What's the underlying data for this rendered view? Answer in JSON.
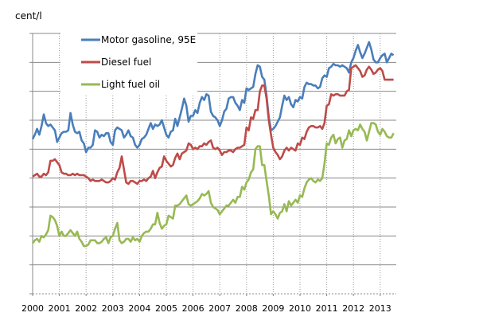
{
  "chart_data": {
    "type": "line",
    "title": "",
    "ylabel": "cent/l",
    "xlabel": "",
    "ylim": [
      0,
      180
    ],
    "yticks": [
      0,
      20,
      40,
      60,
      80,
      100,
      120,
      140,
      160,
      180
    ],
    "xticks": [
      "2000",
      "2001",
      "2002",
      "2003",
      "2004",
      "2005",
      "2006",
      "2007",
      "2008",
      "2009",
      "2010",
      "2011",
      "2012",
      "2013"
    ],
    "x_start": "2000-01",
    "x_frequency": "monthly",
    "grid": {
      "horizontal": "solid",
      "vertical": "dotted"
    },
    "legend_placement": "top-left",
    "series": [
      {
        "name": "Motor gasoline, 95E",
        "color": "#4a7ebb",
        "values": [
          107,
          110,
          114,
          110,
          116,
          124,
          118,
          116,
          117,
          115,
          113,
          105,
          108,
          111,
          112,
          112,
          113,
          125,
          117,
          112,
          111,
          112,
          106,
          104,
          98,
          101,
          101,
          103,
          113,
          112,
          108,
          110,
          109,
          111,
          111,
          105,
          103,
          113,
          115,
          114,
          113,
          108,
          110,
          113,
          109,
          108,
          103,
          101,
          103,
          107,
          108,
          110,
          114,
          118,
          114,
          117,
          116,
          117,
          120,
          115,
          110,
          108,
          112,
          113,
          121,
          116,
          122,
          128,
          135,
          130,
          119,
          123,
          123,
          127,
          125,
          132,
          136,
          134,
          138,
          137,
          126,
          123,
          122,
          120,
          116,
          120,
          126,
          128,
          135,
          136,
          136,
          132,
          130,
          127,
          134,
          132,
          142,
          141,
          142,
          143,
          152,
          158,
          157,
          150,
          148,
          137,
          122,
          113,
          114,
          116,
          119,
          122,
          130,
          137,
          134,
          136,
          131,
          129,
          134,
          133,
          136,
          135,
          143,
          146,
          145,
          145,
          144,
          144,
          142,
          143,
          149,
          151,
          150,
          156,
          157,
          159,
          158,
          158,
          157,
          158,
          157,
          156,
          153,
          160,
          163,
          168,
          172,
          167,
          163,
          166,
          170,
          174,
          169,
          162,
          160,
          160,
          163,
          165,
          166,
          160,
          163,
          166,
          165
        ]
      },
      {
        "name": "Diesel fuel",
        "color": "#be4b48",
        "values": [
          81,
          82,
          83,
          81,
          81,
          83,
          82,
          84,
          92,
          92,
          93,
          91,
          89,
          84,
          83,
          83,
          82,
          82,
          83,
          82,
          83,
          82,
          82,
          82,
          81,
          80,
          78,
          79,
          78,
          78,
          78,
          79,
          78,
          77,
          77,
          78,
          80,
          79,
          84,
          87,
          95,
          86,
          77,
          76,
          78,
          78,
          77,
          76,
          78,
          78,
          79,
          78,
          80,
          81,
          85,
          80,
          84,
          87,
          88,
          95,
          92,
          90,
          88,
          89,
          94,
          97,
          93,
          97,
          98,
          99,
          104,
          103,
          100,
          101,
          100,
          102,
          102,
          104,
          103,
          105,
          106,
          101,
          100,
          101,
          99,
          96,
          98,
          98,
          99,
          99,
          98,
          100,
          101,
          101,
          102,
          103,
          115,
          113,
          122,
          121,
          127,
          127,
          140,
          144,
          144,
          135,
          120,
          110,
          101,
          98,
          96,
          93,
          95,
          99,
          101,
          99,
          101,
          100,
          99,
          104,
          103,
          108,
          107,
          112,
          115,
          116,
          116,
          115,
          115,
          116,
          114,
          118,
          130,
          131,
          138,
          137,
          138,
          138,
          137,
          137,
          137,
          140,
          141,
          156,
          157,
          158,
          156,
          154,
          150,
          151,
          155,
          157,
          155,
          152,
          153,
          155,
          156,
          154,
          148,
          148,
          148,
          148,
          148
        ]
      },
      {
        "name": "Light fuel oil",
        "color": "#98b954",
        "values": [
          35,
          37,
          38,
          36,
          40,
          39,
          41,
          44,
          54,
          53,
          51,
          47,
          40,
          43,
          40,
          40,
          42,
          44,
          42,
          40,
          43,
          38,
          36,
          33,
          33,
          34,
          37,
          37,
          37,
          35,
          35,
          36,
          38,
          39,
          35,
          39,
          40,
          45,
          49,
          37,
          35,
          36,
          38,
          38,
          36,
          39,
          37,
          38,
          36,
          40,
          42,
          43,
          43,
          45,
          48,
          48,
          56,
          49,
          45,
          47,
          48,
          54,
          53,
          52,
          61,
          61,
          62,
          64,
          66,
          68,
          62,
          61,
          62,
          63,
          64,
          66,
          69,
          68,
          69,
          71,
          63,
          60,
          59,
          58,
          55,
          57,
          59,
          61,
          61,
          63,
          65,
          63,
          67,
          67,
          74,
          72,
          77,
          79,
          84,
          86,
          100,
          102,
          102,
          89,
          89,
          78,
          68,
          55,
          57,
          55,
          52,
          56,
          57,
          62,
          57,
          64,
          61,
          63,
          65,
          63,
          68,
          67,
          73,
          77,
          79,
          80,
          78,
          77,
          79,
          78,
          80,
          90,
          104,
          103,
          108,
          110,
          104,
          107,
          108,
          101,
          106,
          107,
          113,
          109,
          113,
          114,
          113,
          117,
          114,
          112,
          106,
          112,
          118,
          118,
          117,
          112,
          110,
          114,
          112,
          109,
          108,
          108,
          111
        ]
      }
    ]
  }
}
